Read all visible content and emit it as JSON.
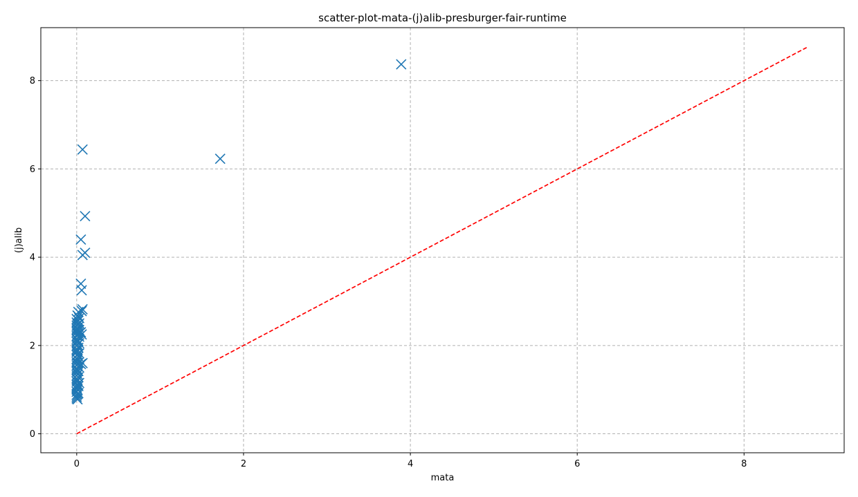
{
  "chart_data": {
    "type": "scatter",
    "title": "scatter-plot-mata-(j)alib-presburger-fair-runtime",
    "xlabel": "mata",
    "ylabel": "(j)alib",
    "xlim": [
      -0.43,
      9.2
    ],
    "ylim": [
      -0.43,
      9.2
    ],
    "xticks": [
      0,
      2,
      4,
      6,
      8
    ],
    "yticks": [
      0,
      2,
      4,
      6,
      8
    ],
    "grid": true,
    "marker": "x",
    "colors": {
      "points": "#1f77b4",
      "diagonal": "#ff0000"
    },
    "diagonal": {
      "x": [
        0,
        8.75
      ],
      "y": [
        0,
        8.75
      ],
      "style": "dashed"
    },
    "series": [
      {
        "x": [
          3.89,
          1.72,
          0.07,
          0.1,
          0.05,
          0.07,
          0.1,
          0.05,
          0.06,
          0.07,
          0.05,
          0.06,
          0.07,
          0.05,
          0.06,
          0.0,
          0.0,
          0.0,
          0.0,
          0.0,
          0.0,
          0.0,
          0.0,
          0.0,
          0.0,
          0.0,
          0.0,
          0.0,
          0.0,
          0.0,
          0.0,
          0.0,
          0.0,
          0.0,
          0.0,
          0.0,
          0.0,
          0.0,
          0.0,
          0.0,
          0.0,
          0.0,
          0.0,
          0.0,
          0.0,
          0.01,
          0.01,
          0.01,
          0.01,
          0.01,
          0.01,
          0.01,
          0.01,
          0.01,
          0.01,
          0.01,
          0.01,
          0.01,
          0.01,
          0.01,
          0.01,
          0.01,
          0.01,
          0.02,
          0.02,
          0.02,
          0.02,
          0.02,
          0.02,
          0.02,
          0.02,
          0.02,
          0.02,
          0.02,
          0.02,
          0.02,
          0.03,
          0.03,
          0.03,
          0.03,
          0.03,
          0.03,
          0.03,
          0.03
        ],
        "y": [
          8.37,
          6.23,
          6.44,
          4.93,
          4.4,
          4.05,
          4.1,
          3.4,
          3.25,
          2.82,
          2.3,
          2.25,
          1.6,
          1.58,
          2.78,
          0.8,
          0.88,
          0.95,
          1.02,
          1.1,
          1.18,
          1.25,
          1.32,
          1.4,
          1.48,
          1.55,
          1.62,
          1.7,
          1.78,
          1.85,
          1.92,
          2.0,
          2.08,
          2.15,
          2.22,
          2.3,
          2.38,
          2.45,
          2.52,
          2.6,
          0.84,
          1.06,
          1.44,
          1.88,
          2.34,
          0.78,
          0.9,
          1.0,
          1.12,
          1.22,
          1.35,
          1.46,
          1.58,
          1.68,
          1.8,
          1.9,
          2.02,
          2.12,
          2.25,
          2.36,
          2.48,
          2.58,
          2.68,
          0.92,
          1.08,
          1.28,
          1.42,
          1.6,
          1.75,
          1.95,
          2.1,
          2.28,
          2.42,
          2.56,
          2.66,
          2.76,
          1.15,
          1.5,
          1.82,
          2.05,
          2.2,
          2.35,
          2.5,
          2.62
        ]
      }
    ]
  }
}
